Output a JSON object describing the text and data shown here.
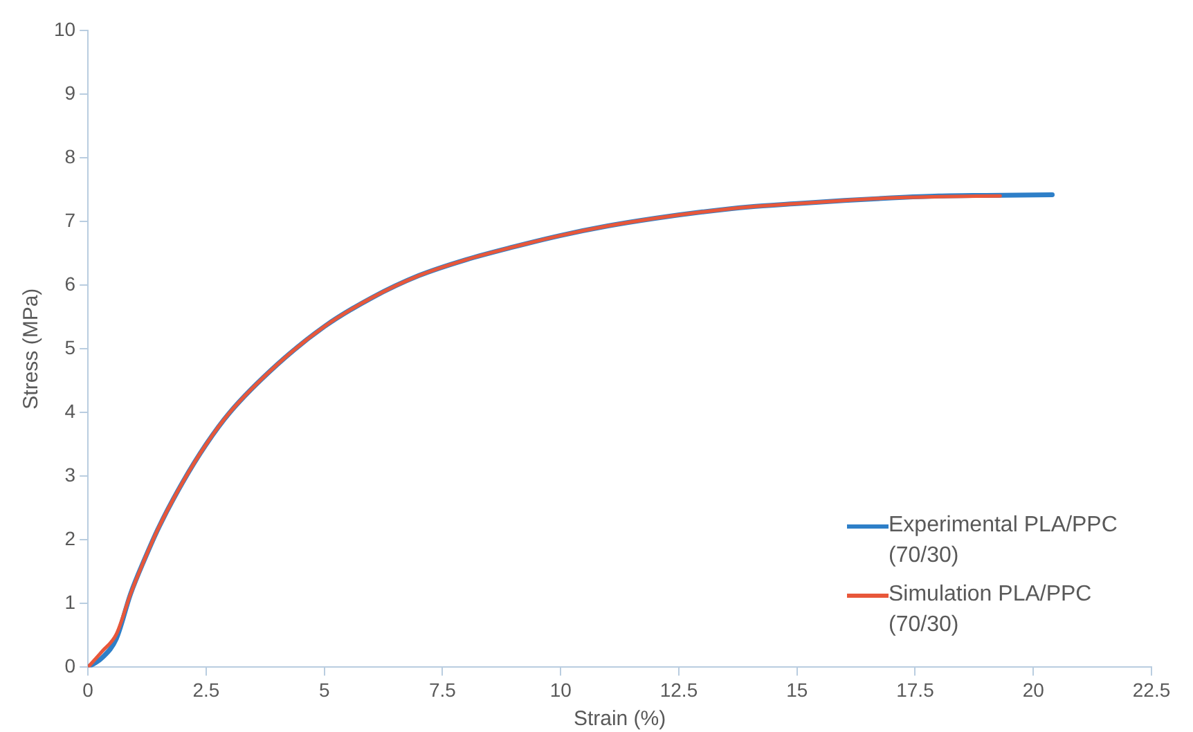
{
  "chart_data": {
    "type": "line",
    "xlabel": "Strain (%)",
    "ylabel": "Stress (MPa)",
    "xlim": [
      0,
      22.5
    ],
    "xticks": [
      0,
      2.5,
      5,
      7.5,
      10,
      12.5,
      15,
      17.5,
      20,
      22.5
    ],
    "ylim": [
      0,
      10
    ],
    "yticks": [
      0,
      1,
      2,
      3,
      4,
      5,
      6,
      7,
      8,
      9,
      10
    ],
    "grid": false,
    "legend": "bottom right",
    "marker": "none",
    "line_style": "solid",
    "series": [
      {
        "name": "Experimental PLA/PPC (70/30)",
        "color": "#2e7fc8",
        "x": [
          0,
          0.3,
          0.6,
          0.9,
          1.2,
          1.5,
          2,
          2.5,
          3,
          4,
          5,
          6,
          7,
          8,
          9,
          10,
          11,
          12,
          13,
          14,
          15,
          16,
          17,
          18,
          19,
          20.4
        ],
        "values": [
          0,
          0.15,
          0.45,
          1.15,
          1.7,
          2.2,
          2.9,
          3.5,
          4.0,
          4.75,
          5.35,
          5.8,
          6.15,
          6.4,
          6.6,
          6.78,
          6.93,
          7.05,
          7.15,
          7.23,
          7.28,
          7.33,
          7.37,
          7.4,
          7.41,
          7.42
        ]
      },
      {
        "name": "Simulation PLA/PPC (70/30)",
        "color": "#e8573a",
        "x": [
          0,
          0.3,
          0.6,
          0.9,
          1.2,
          1.5,
          2,
          2.5,
          3,
          4,
          5,
          6,
          7,
          8,
          9,
          10,
          11,
          12,
          13,
          14,
          15,
          16,
          17,
          18,
          19.3
        ],
        "values": [
          0,
          0.25,
          0.52,
          1.15,
          1.7,
          2.2,
          2.9,
          3.5,
          4.0,
          4.75,
          5.35,
          5.8,
          6.15,
          6.4,
          6.6,
          6.78,
          6.93,
          7.05,
          7.15,
          7.23,
          7.28,
          7.33,
          7.37,
          7.39,
          7.4
        ]
      }
    ]
  }
}
